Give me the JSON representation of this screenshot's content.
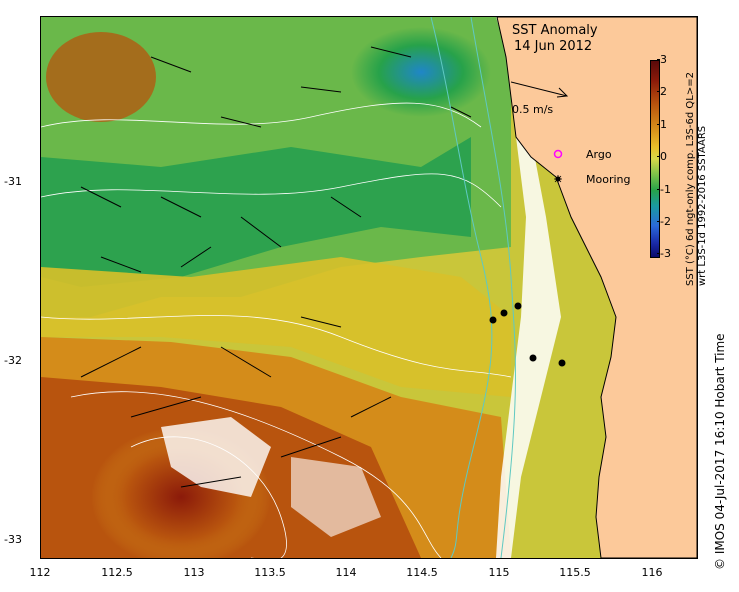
{
  "map": {
    "title": "SST Anomaly",
    "date": "14 Jun 2012",
    "scale_label": "0.5 m/s",
    "legend": [
      {
        "label": "Argo",
        "color": "#ff00ff",
        "symbol": "open-circle"
      },
      {
        "label": "Mooring",
        "color": "#000000",
        "symbol": "asterisk"
      }
    ],
    "colorbar": {
      "ticks": [
        "3",
        "2",
        "1",
        "0",
        "-1",
        "-2",
        "-3"
      ],
      "label_line1": "SST (°C) 6d ngt-only comp. L3S-6d QL>=2",
      "label_line2": "wrt L3S-1d 1992-2016 SSTAARS"
    },
    "x_ticks": [
      "112",
      "112.5",
      "113",
      "113.5",
      "114",
      "114.5",
      "115",
      "115.5",
      "116"
    ],
    "y_ticks": [
      "-31",
      "-32",
      "-33"
    ],
    "credit": "© IMOS 04-Jul-2017 16:10 Hobart Time",
    "colors": {
      "land": "#fcc99a",
      "cold": "#1a9aa0",
      "warm": "#b8540e"
    }
  }
}
